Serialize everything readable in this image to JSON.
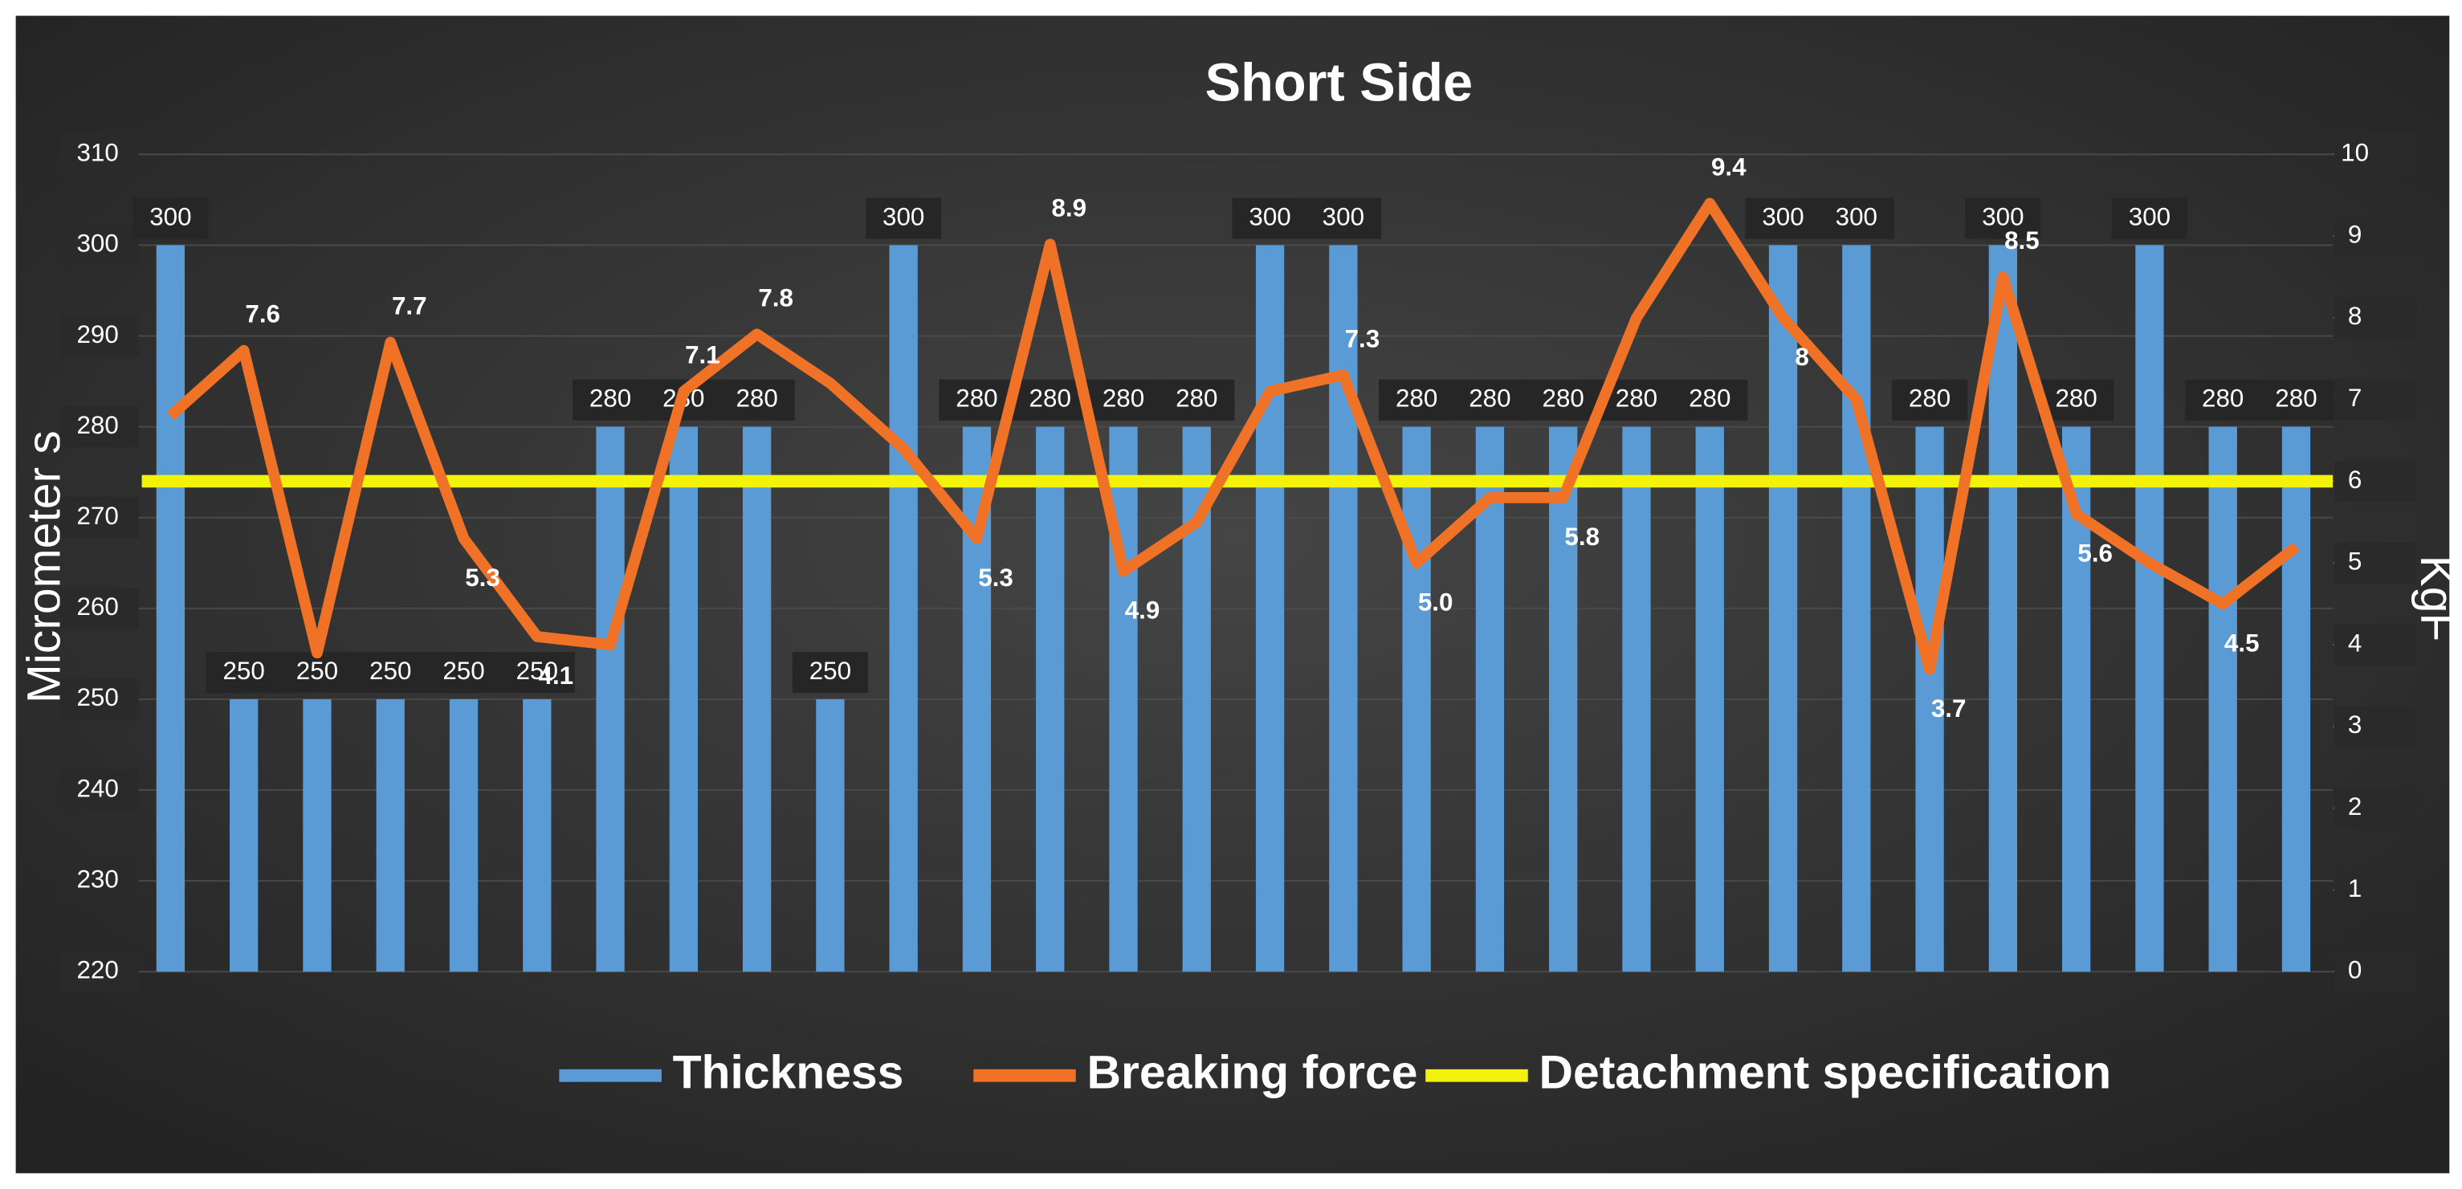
{
  "chart_data": {
    "type": "bar",
    "title": "Short Side",
    "y_label": "Micrometer s",
    "y2_label": "KgF",
    "categories": [
      null,
      null,
      null,
      null,
      null,
      null,
      null,
      null,
      null,
      null,
      null,
      null,
      null,
      null,
      null,
      null,
      null,
      null,
      null,
      null,
      null,
      null,
      null,
      null,
      null,
      null,
      null,
      null,
      null,
      null
    ],
    "series": [
      {
        "name": "Thickness",
        "type": "bar",
        "color": "#5b9bd5",
        "axis": "y",
        "values": [
          300,
          250,
          250,
          250,
          250,
          250,
          280,
          280,
          280,
          250,
          300,
          280,
          280,
          280,
          280,
          300,
          300,
          280,
          280,
          280,
          280,
          280,
          300,
          300,
          280,
          300,
          280,
          300,
          280,
          280
        ]
      },
      {
        "name": "Breaking force",
        "type": "line",
        "color": "#f07226",
        "axis": "y2",
        "values": [
          6.8,
          7.6,
          3.9,
          7.7,
          5.3,
          4.1,
          4.0,
          7.1,
          7.8,
          7.2,
          6.4,
          5.3,
          8.9,
          4.9,
          5.5,
          7.1,
          7.3,
          5.0,
          5.8,
          5.8,
          8.0,
          9.4,
          8,
          7.0,
          3.7,
          8.5,
          5.6,
          5.0,
          4.5,
          5.2
        ],
        "value_labels": [
          null,
          "7.6",
          null,
          "7.7",
          "5.3",
          "4.1",
          null,
          "7.1",
          "7.8",
          null,
          null,
          "5.3",
          "8.9",
          "4.9",
          null,
          null,
          "7.3",
          "5.0",
          null,
          "5.8",
          null,
          "9.4",
          "8",
          null,
          "3.7",
          "8.5",
          "5.6",
          null,
          "4.5",
          null
        ]
      },
      {
        "name": "Detachment specification",
        "type": "hline",
        "color": "#f2f20a",
        "axis": "y2",
        "value": 6
      }
    ],
    "ylim": [
      220,
      310
    ],
    "yticks": [
      220,
      230,
      240,
      250,
      260,
      270,
      280,
      290,
      300,
      310
    ],
    "y2lim": [
      0,
      10
    ],
    "y2ticks": [
      0,
      1,
      2,
      3,
      4,
      5,
      6,
      7,
      8,
      9,
      10
    ],
    "grid": true,
    "legend": "bottom"
  }
}
